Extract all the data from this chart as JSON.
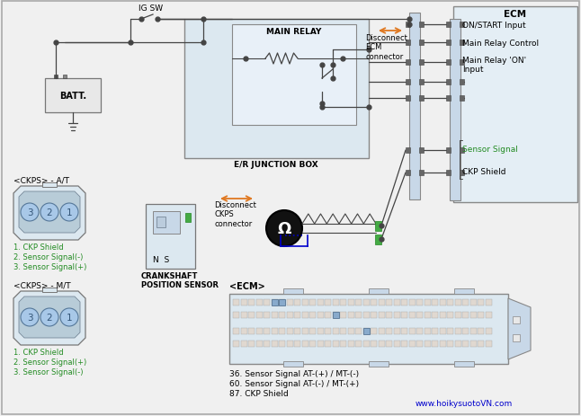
{
  "bg_color": "#f0f0f0",
  "line_color": "#444444",
  "ecm_bg": "#dce8f0",
  "junction_bg": "#dce8f0",
  "green_color": "#228B22",
  "orange_color": "#e07820",
  "blue_color": "#0000cc",
  "dark_color": "#333333",
  "watermark": "www.hoikysuotoVN.com",
  "label_ecm": "ECM",
  "label_igsw": "IG SW",
  "label_batt": "BATT.",
  "label_main_relay": "MAIN RELAY",
  "label_junction": "E/R JUNCTION BOX",
  "label_ckps_at": "<CKPS> - A/T",
  "label_ckps_mt": "<CKPS> - M/T",
  "label_crankshaft": "CRANKSHAFT\nPOSITION SENSOR",
  "label_disconnect_ecm": "Disconnect\nECM\nconnector",
  "label_disconnect_ckps": "Disconnect\nCKPS\nconnector",
  "label_on_start": "ON/START Input",
  "label_relay_control": "Main Relay Control",
  "label_relay_on": "Main Relay 'ON'\nInput",
  "label_sensor_signal": "Sensor Signal",
  "label_ckp_shield": "CKP Shield",
  "label_ecm_connector": "<ECM>",
  "label_36": "36. Sensor Signal AT-(+) / MT-(-)",
  "label_60": "60. Sensor Signal AT-(-) / MT-(+)",
  "label_87": "87. CKP Shield",
  "at_pins": [
    "1. CKP Shield",
    "2. Sensor Signal(-)",
    "3. Sensor Signal(+)"
  ],
  "mt_pins": [
    "1. CKP Shield",
    "2. Sensor Signal(+)",
    "3. Sensor Signal(-)"
  ]
}
